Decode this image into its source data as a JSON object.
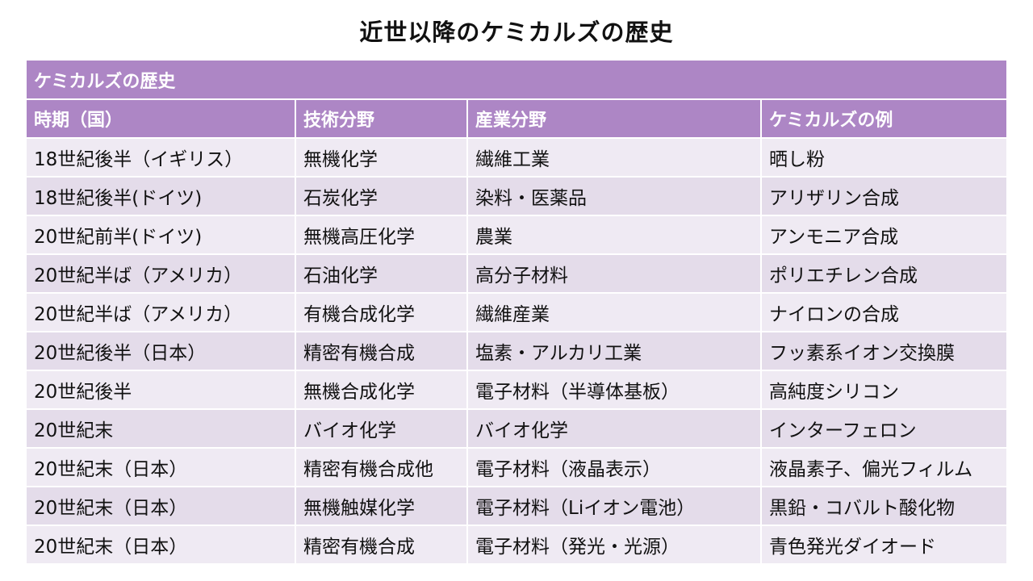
{
  "title": "近世以降のケミカルズの歴史",
  "table": {
    "caption": "ケミカルズの歴史",
    "headers": [
      "時期（国）",
      "技術分野",
      "産業分野",
      "ケミカルズの例"
    ],
    "rows": [
      [
        "18世紀後半（イギリス）",
        "無機化学",
        "繊維工業",
        "晒し粉"
      ],
      [
        "18世紀後半(ドイツ)",
        "石炭化学",
        "染料・医薬品",
        "アリザリン合成"
      ],
      [
        "20世紀前半(ドイツ)",
        "無機高圧化学",
        "農業",
        "アンモニア合成"
      ],
      [
        "20世紀半ば（アメリカ）",
        "石油化学",
        "高分子材料",
        "ポリエチレン合成"
      ],
      [
        "20世紀半ば（アメリカ）",
        "有機合成化学",
        "繊維産業",
        "ナイロンの合成"
      ],
      [
        "20世紀後半（日本）",
        "精密有機合成",
        "塩素・アルカリ工業",
        "フッ素系イオン交換膜"
      ],
      [
        "20世紀後半",
        "無機合成化学",
        "電子材料（半導体基板）",
        "高純度シリコン"
      ],
      [
        "20世紀末",
        "バイオ化学",
        "バイオ化学",
        "インターフェロン"
      ],
      [
        "20世紀末（日本）",
        "精密有機合成他",
        "電子材料（液晶表示）",
        "液晶素子、偏光フィルム"
      ],
      [
        "20世紀末（日本）",
        "無機触媒化学",
        "電子材料（Liイオン電池）",
        "黒鉛・コバルト酸化物"
      ],
      [
        "20世紀末（日本）",
        "精密有機合成",
        "電子材料（発光・光源）",
        "青色発光ダイオード"
      ]
    ]
  },
  "colors": {
    "header_bg": "#ad86c5",
    "row_odd_bg": "#efeaf3",
    "row_even_bg": "#e4dcea"
  }
}
